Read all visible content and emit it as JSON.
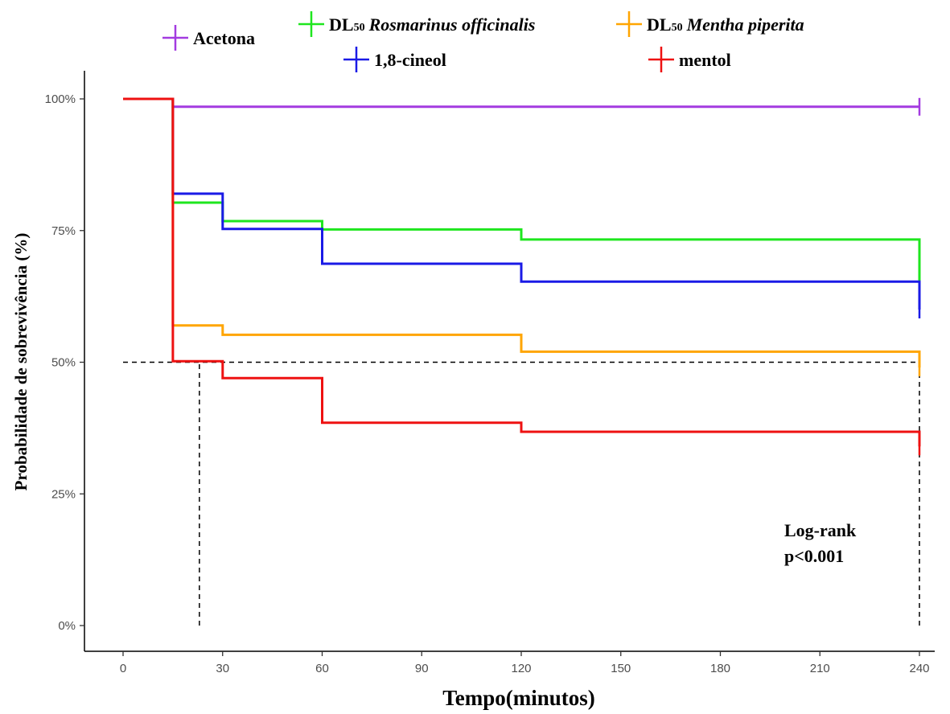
{
  "chart_data": {
    "type": "line",
    "step": true,
    "xlabel": "Tempo(minutos)",
    "ylabel": "Probabilidade de sobrevivência (%)",
    "xlim": [
      0,
      240
    ],
    "ylim": [
      0,
      1
    ],
    "x_ticks": [
      0,
      30,
      60,
      90,
      120,
      150,
      180,
      210,
      240
    ],
    "x_tick_labels": [
      "0",
      "30",
      "60",
      "90",
      "120",
      "150",
      "180",
      "210",
      "240"
    ],
    "y_ticks": [
      0,
      0.25,
      0.5,
      0.75,
      1.0
    ],
    "y_tick_labels": [
      "0%",
      "25%",
      "50%",
      "75%",
      "100%"
    ],
    "grid": false,
    "legend_position": "top",
    "series": [
      {
        "name": "Acetona",
        "color": "#a33be0",
        "points": [
          [
            0,
            1.0
          ],
          [
            15,
            1.0
          ],
          [
            15,
            0.985
          ],
          [
            240,
            0.985
          ]
        ],
        "censor_at": [
          240,
          0.985
        ]
      },
      {
        "name": "DL50 Rosmarinus officinalis",
        "legend_prefix": "DL",
        "legend_sub": "50",
        "legend_italic": "Rosmarinus officinalis",
        "color": "#1ee61e",
        "points": [
          [
            0,
            1.0
          ],
          [
            15,
            1.0
          ],
          [
            15,
            0.803
          ],
          [
            30,
            0.803
          ],
          [
            30,
            0.768
          ],
          [
            60,
            0.768
          ],
          [
            60,
            0.752
          ],
          [
            120,
            0.752
          ],
          [
            120,
            0.733
          ],
          [
            240,
            0.733
          ],
          [
            240,
            0.65
          ]
        ],
        "censor_at": [
          240,
          0.65
        ]
      },
      {
        "name": "DL50 Mentha piperita",
        "legend_prefix": "DL",
        "legend_sub": "50",
        "legend_italic": "Mentha piperita",
        "color": "#ffa500",
        "points": [
          [
            0,
            1.0
          ],
          [
            15,
            1.0
          ],
          [
            15,
            0.57
          ],
          [
            30,
            0.57
          ],
          [
            30,
            0.552
          ],
          [
            120,
            0.552
          ],
          [
            120,
            0.52
          ],
          [
            240,
            0.52
          ],
          [
            240,
            0.49
          ]
        ],
        "censor_at": [
          240,
          0.49
        ]
      },
      {
        "name": "1,8-cineol",
        "color": "#1a1ae6",
        "points": [
          [
            0,
            1.0
          ],
          [
            15,
            1.0
          ],
          [
            15,
            0.82
          ],
          [
            30,
            0.82
          ],
          [
            30,
            0.753
          ],
          [
            60,
            0.753
          ],
          [
            60,
            0.687
          ],
          [
            120,
            0.687
          ],
          [
            120,
            0.653
          ],
          [
            240,
            0.653
          ],
          [
            240,
            0.6
          ]
        ],
        "censor_at": [
          240,
          0.6
        ]
      },
      {
        "name": "mentol",
        "color": "#ee1111",
        "points": [
          [
            0,
            1.0
          ],
          [
            15,
            1.0
          ],
          [
            15,
            0.502
          ],
          [
            30,
            0.502
          ],
          [
            30,
            0.47
          ],
          [
            60,
            0.47
          ],
          [
            60,
            0.385
          ],
          [
            120,
            0.385
          ],
          [
            120,
            0.368
          ],
          [
            240,
            0.368
          ],
          [
            240,
            0.34
          ]
        ],
        "censor_at": [
          240,
          0.34
        ]
      }
    ],
    "reference_lines": [
      {
        "kind": "horizontal",
        "y": 0.5,
        "x_from": 0,
        "x_to": 240
      },
      {
        "kind": "vertical",
        "x": 23,
        "y_from": 0,
        "y_to": 0.5
      },
      {
        "kind": "vertical",
        "x": 240,
        "y_from": 0,
        "y_to": 0.5
      }
    ],
    "annotation_lines": [
      "Log-rank",
      "p<0.001"
    ]
  }
}
